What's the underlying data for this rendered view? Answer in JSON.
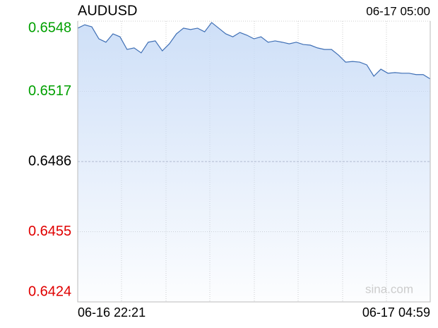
{
  "chart_data": {
    "type": "line",
    "title": "AUDUSD",
    "timestamp": "06-17 05:00",
    "watermark": "sina.com",
    "x_labels": [
      "06-16 22:21",
      "06-17 04:59"
    ],
    "ylim": [
      0.6424,
      0.6548
    ],
    "yticks": [
      0.6424,
      0.6455,
      0.6486,
      0.6517,
      0.6548
    ],
    "up_color": "#00a000",
    "down_color": "#e00000",
    "flat_color": "#000000",
    "line_color": "#3f6fb5",
    "fill_color": "#c9dcf7",
    "values": [
      0.65449,
      0.65464,
      0.65455,
      0.65402,
      0.65387,
      0.65424,
      0.65411,
      0.65355,
      0.65362,
      0.6534,
      0.65387,
      0.65393,
      0.65349,
      0.6538,
      0.65424,
      0.65449,
      0.65443,
      0.65449,
      0.65433,
      0.65474,
      0.65449,
      0.65424,
      0.65411,
      0.6543,
      0.65418,
      0.65402,
      0.65411,
      0.65387,
      0.65393,
      0.65387,
      0.6538,
      0.65387,
      0.65377,
      0.65374,
      0.65362,
      0.65355,
      0.65355,
      0.6533,
      0.65299,
      0.65302,
      0.65299,
      0.65287,
      0.65237,
      0.65268,
      0.6525,
      0.65253,
      0.6525,
      0.6525,
      0.65244,
      0.65244,
      0.65225
    ]
  }
}
